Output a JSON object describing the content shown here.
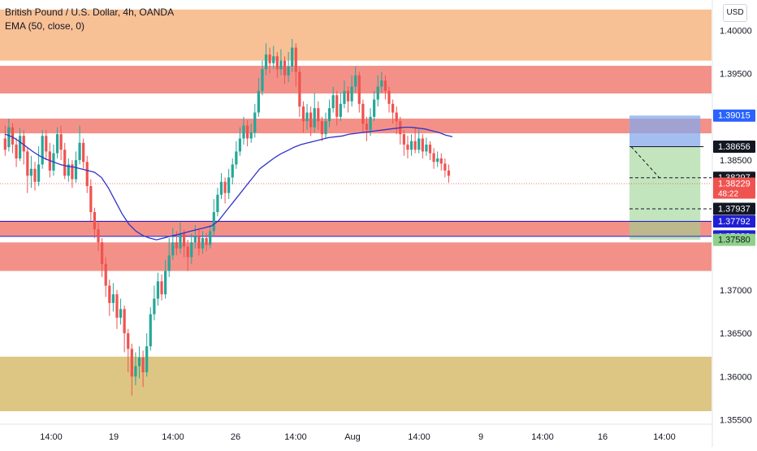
{
  "header": {
    "title": "British Pound / U.S. Dollar, 4h, OANDA",
    "indicator": "EMA (50, close, 0)",
    "currency": "USD"
  },
  "chart_data": {
    "type": "candlestick",
    "yscale": {
      "ticks": [
        1.4,
        1.395,
        1.385,
        1.37,
        1.365,
        1.36,
        1.355
      ],
      "range": [
        1.3545,
        1.4035
      ]
    },
    "x_ticks": [
      "14:00",
      "19",
      "14:00",
      "26",
      "14:00",
      "Aug",
      "14:00",
      "9",
      "14:00",
      "16",
      "14:00"
    ],
    "zones": [
      {
        "type": "supply",
        "from": 1.3965,
        "to": 1.4024,
        "color": "#f8bd8f"
      },
      {
        "type": "resistance",
        "from": 1.3927,
        "to": 1.3959,
        "color": "#f28b82"
      },
      {
        "type": "resistance",
        "from": 1.3881,
        "to": 1.3898,
        "color": "#f28b82"
      },
      {
        "type": "support",
        "from": 1.3762,
        "to": 1.378,
        "color": "#f28b82"
      },
      {
        "type": "support",
        "from": 1.3722,
        "to": 1.3755,
        "color": "#f28b82"
      },
      {
        "type": "demand",
        "from": 1.356,
        "to": 1.3623,
        "color": "#dbc27c"
      }
    ],
    "position": {
      "type": "short",
      "entry": 1.38656,
      "stop": 1.39015,
      "target": 1.3758,
      "stop_color": "#86a8eb",
      "target_color": "#9ad491",
      "start_index": 168,
      "end_index": 187
    },
    "horizontal_lines": [
      {
        "price": 1.38297,
        "style": "dashed",
        "color": "#131722"
      },
      {
        "price": 1.37937,
        "style": "dashed",
        "color": "#131722"
      },
      {
        "price": 1.37792,
        "style": "solid",
        "color": "#1f1fd6"
      },
      {
        "price": 1.3762,
        "style": "solid",
        "color": "#1f1fd6"
      },
      {
        "price": 1.38229,
        "style": "dotted",
        "color": "#ef5350"
      }
    ],
    "price_labels": [
      {
        "text": "1.39015",
        "price": 1.39015,
        "bg": "#2962ff",
        "fg": "#ffffff"
      },
      {
        "text": "1.38656",
        "price": 1.38656,
        "bg": "#131722",
        "fg": "#ffffff"
      },
      {
        "text": "1.38297",
        "price": 1.38297,
        "bg": "#131722",
        "fg": "#ffffff"
      },
      {
        "text": "1.38229",
        "price": 1.38229,
        "bg": "#ef5350",
        "fg": "#ffffff",
        "sub": "48:22"
      },
      {
        "text": "1.37937",
        "price": 1.37937,
        "bg": "#131722",
        "fg": "#ffffff"
      },
      {
        "text": "1.37792",
        "price": 1.37792,
        "bg": "#1f1fd6",
        "fg": "#ffffff"
      },
      {
        "text": "1.37620",
        "price": 1.3762,
        "bg": "#1f1fd6",
        "fg": "#ffffff"
      },
      {
        "text": "1.37580",
        "price": 1.3758,
        "bg": "#8fd18a",
        "fg": "#131722"
      }
    ],
    "ema": [
      1.388,
      1.3877,
      1.3872,
      1.3866,
      1.386,
      1.3855,
      1.3851,
      1.3848,
      1.3845,
      1.3843,
      1.3842,
      1.384,
      1.3838,
      1.3836,
      1.383,
      1.3818,
      1.3803,
      1.3788,
      1.3776,
      1.3768,
      1.3763,
      1.376,
      1.3758,
      1.376,
      1.3762,
      1.3764,
      1.3766,
      1.3768,
      1.377,
      1.3772,
      1.3774,
      1.378,
      1.379,
      1.38,
      1.381,
      1.382,
      1.383,
      1.384,
      1.3846,
      1.3852,
      1.3857,
      1.3861,
      1.3865,
      1.3868,
      1.387,
      1.3872,
      1.3874,
      1.3876,
      1.3877,
      1.3878,
      1.388,
      1.3881,
      1.3882,
      1.3883,
      1.3884,
      1.3885,
      1.3886,
      1.3887,
      1.3888,
      1.3888,
      1.3887,
      1.3886,
      1.3884,
      1.3882,
      1.3879,
      1.3877
    ],
    "candles": [
      [
        1.3875,
        1.3862,
        1.389,
        1.3855
      ],
      [
        1.3865,
        1.3888,
        1.3898,
        1.386
      ],
      [
        1.3888,
        1.3868,
        1.3893,
        1.3858
      ],
      [
        1.3868,
        1.3852,
        1.3876,
        1.3842
      ],
      [
        1.3852,
        1.3878,
        1.3887,
        1.3849
      ],
      [
        1.3878,
        1.386,
        1.3885,
        1.3845
      ],
      [
        1.386,
        1.3832,
        1.3865,
        1.3812
      ],
      [
        1.3832,
        1.384,
        1.3855,
        1.3818
      ],
      [
        1.384,
        1.3825,
        1.3848,
        1.3815
      ],
      [
        1.3825,
        1.3845,
        1.3866,
        1.382
      ],
      [
        1.3845,
        1.3878,
        1.3885,
        1.384
      ],
      [
        1.3878,
        1.386,
        1.3885,
        1.385
      ],
      [
        1.386,
        1.3838,
        1.387,
        1.383
      ],
      [
        1.3838,
        1.3858,
        1.3868,
        1.3832
      ],
      [
        1.3858,
        1.388,
        1.3888,
        1.3852
      ],
      [
        1.388,
        1.3862,
        1.389,
        1.385
      ],
      [
        1.3862,
        1.3832,
        1.387,
        1.3828
      ],
      [
        1.3832,
        1.3845,
        1.3852,
        1.3825
      ],
      [
        1.3845,
        1.3828,
        1.385,
        1.3818
      ],
      [
        1.3828,
        1.385,
        1.386,
        1.3824
      ],
      [
        1.385,
        1.387,
        1.389,
        1.3845
      ],
      [
        1.387,
        1.3848,
        1.3875,
        1.384
      ],
      [
        1.3848,
        1.382,
        1.3855,
        1.3812
      ],
      [
        1.382,
        1.379,
        1.3828,
        1.378
      ],
      [
        1.379,
        1.377,
        1.3795,
        1.376
      ],
      [
        1.377,
        1.3755,
        1.3778,
        1.3745
      ],
      [
        1.3755,
        1.373,
        1.376,
        1.3715
      ],
      [
        1.373,
        1.3705,
        1.3738,
        1.3692
      ],
      [
        1.3705,
        1.3685,
        1.3712,
        1.367
      ],
      [
        1.3685,
        1.3695,
        1.3708,
        1.3675
      ],
      [
        1.3695,
        1.3668,
        1.37,
        1.3655
      ],
      [
        1.3668,
        1.3678,
        1.369,
        1.366
      ],
      [
        1.3678,
        1.365,
        1.3682,
        1.3628
      ],
      [
        1.365,
        1.3632,
        1.3655,
        1.3605
      ],
      [
        1.3632,
        1.36,
        1.3638,
        1.3578
      ],
      [
        1.36,
        1.3612,
        1.3628,
        1.359
      ],
      [
        1.3612,
        1.3622,
        1.3635,
        1.3598
      ],
      [
        1.3622,
        1.3605,
        1.363,
        1.3588
      ],
      [
        1.3605,
        1.3635,
        1.365,
        1.36
      ],
      [
        1.3635,
        1.3672,
        1.368,
        1.363
      ],
      [
        1.3672,
        1.369,
        1.3705,
        1.3665
      ],
      [
        1.369,
        1.371,
        1.372,
        1.3682
      ],
      [
        1.371,
        1.3695,
        1.3718,
        1.3688
      ],
      [
        1.3695,
        1.3722,
        1.3735,
        1.369
      ],
      [
        1.3722,
        1.374,
        1.376,
        1.3715
      ],
      [
        1.374,
        1.3755,
        1.3772,
        1.3735
      ],
      [
        1.3755,
        1.3748,
        1.3768,
        1.374
      ],
      [
        1.3748,
        1.3765,
        1.3778,
        1.3742
      ],
      [
        1.3765,
        1.375,
        1.377,
        1.3738
      ],
      [
        1.375,
        1.3738,
        1.3758,
        1.3722
      ],
      [
        1.3738,
        1.3755,
        1.3765,
        1.373
      ],
      [
        1.3755,
        1.3762,
        1.3775,
        1.3748
      ],
      [
        1.3762,
        1.3748,
        1.377,
        1.374
      ],
      [
        1.3748,
        1.376,
        1.3768,
        1.3742
      ],
      [
        1.376,
        1.3752,
        1.3766,
        1.3745
      ],
      [
        1.3752,
        1.3768,
        1.3775,
        1.3748
      ],
      [
        1.3768,
        1.379,
        1.3805,
        1.3762
      ],
      [
        1.379,
        1.381,
        1.3818,
        1.3785
      ],
      [
        1.381,
        1.3825,
        1.3835,
        1.3805
      ],
      [
        1.3825,
        1.3812,
        1.383,
        1.38
      ],
      [
        1.3812,
        1.383,
        1.384,
        1.3805
      ],
      [
        1.383,
        1.3845,
        1.3852,
        1.3822
      ],
      [
        1.3845,
        1.386,
        1.3872,
        1.384
      ],
      [
        1.386,
        1.3875,
        1.3888,
        1.3855
      ],
      [
        1.3875,
        1.389,
        1.39,
        1.3868
      ],
      [
        1.389,
        1.3875,
        1.3896,
        1.3866
      ],
      [
        1.3875,
        1.3882,
        1.3892,
        1.387
      ],
      [
        1.3882,
        1.3905,
        1.3915,
        1.3876
      ],
      [
        1.3905,
        1.393,
        1.3945,
        1.39
      ],
      [
        1.393,
        1.3955,
        1.3965,
        1.3925
      ],
      [
        1.3955,
        1.3972,
        1.3985,
        1.3948
      ],
      [
        1.3972,
        1.3962,
        1.398,
        1.395
      ],
      [
        1.3962,
        1.397,
        1.3982,
        1.3955
      ],
      [
        1.397,
        1.3955,
        1.3975,
        1.3945
      ],
      [
        1.3955,
        1.3965,
        1.3978,
        1.3948
      ],
      [
        1.3965,
        1.3948,
        1.397,
        1.3938
      ],
      [
        1.3948,
        1.3958,
        1.3975,
        1.394
      ],
      [
        1.3958,
        1.398,
        1.399,
        1.3952
      ],
      [
        1.398,
        1.3952,
        1.3985,
        1.3935
      ],
      [
        1.3952,
        1.3912,
        1.3958,
        1.39
      ],
      [
        1.3912,
        1.3895,
        1.3918,
        1.3882
      ],
      [
        1.3895,
        1.3905,
        1.3915,
        1.3885
      ],
      [
        1.3905,
        1.3888,
        1.3912,
        1.3878
      ],
      [
        1.3888,
        1.391,
        1.3928,
        1.3882
      ],
      [
        1.391,
        1.3895,
        1.3918,
        1.3885
      ],
      [
        1.3895,
        1.388,
        1.39,
        1.3872
      ],
      [
        1.388,
        1.3895,
        1.3905,
        1.3875
      ],
      [
        1.3895,
        1.391,
        1.392,
        1.3888
      ],
      [
        1.391,
        1.3925,
        1.3935,
        1.3905
      ],
      [
        1.3925,
        1.39,
        1.393,
        1.389
      ],
      [
        1.39,
        1.3915,
        1.3928,
        1.3895
      ],
      [
        1.3915,
        1.393,
        1.3942,
        1.391
      ],
      [
        1.393,
        1.3918,
        1.3935,
        1.3905
      ],
      [
        1.3918,
        1.3935,
        1.3948,
        1.3912
      ],
      [
        1.3935,
        1.3948,
        1.3958,
        1.3928
      ],
      [
        1.3948,
        1.3915,
        1.3952,
        1.3905
      ],
      [
        1.3915,
        1.3892,
        1.392,
        1.3882
      ],
      [
        1.3892,
        1.3885,
        1.39,
        1.3872
      ],
      [
        1.3885,
        1.39,
        1.391,
        1.3878
      ],
      [
        1.39,
        1.392,
        1.393,
        1.3895
      ],
      [
        1.392,
        1.3935,
        1.3948,
        1.3912
      ],
      [
        1.3935,
        1.3942,
        1.3952,
        1.3928
      ],
      [
        1.3942,
        1.393,
        1.3948,
        1.392
      ],
      [
        1.393,
        1.3915,
        1.3935,
        1.3905
      ],
      [
        1.3915,
        1.3905,
        1.392,
        1.3892
      ],
      [
        1.3905,
        1.3895,
        1.3912,
        1.388
      ],
      [
        1.3895,
        1.388,
        1.39,
        1.3868
      ],
      [
        1.388,
        1.3868,
        1.3885,
        1.3855
      ],
      [
        1.3868,
        1.3862,
        1.3878,
        1.3852
      ],
      [
        1.3862,
        1.3872,
        1.388,
        1.3855
      ],
      [
        1.3872,
        1.3862,
        1.3888,
        1.3858
      ],
      [
        1.3862,
        1.3875,
        1.3885,
        1.3858
      ],
      [
        1.3875,
        1.386,
        1.388,
        1.3852
      ],
      [
        1.386,
        1.3868,
        1.3876,
        1.3855
      ],
      [
        1.3868,
        1.3858,
        1.3872,
        1.385
      ],
      [
        1.3858,
        1.3848,
        1.3864,
        1.384
      ],
      [
        1.3848,
        1.3852,
        1.386,
        1.3842
      ],
      [
        1.3852,
        1.3846,
        1.3858,
        1.3838
      ],
      [
        1.3846,
        1.3838,
        1.3852,
        1.383
      ],
      [
        1.3838,
        1.3832,
        1.3845,
        1.3824
      ]
    ],
    "future_ticks": 70
  }
}
